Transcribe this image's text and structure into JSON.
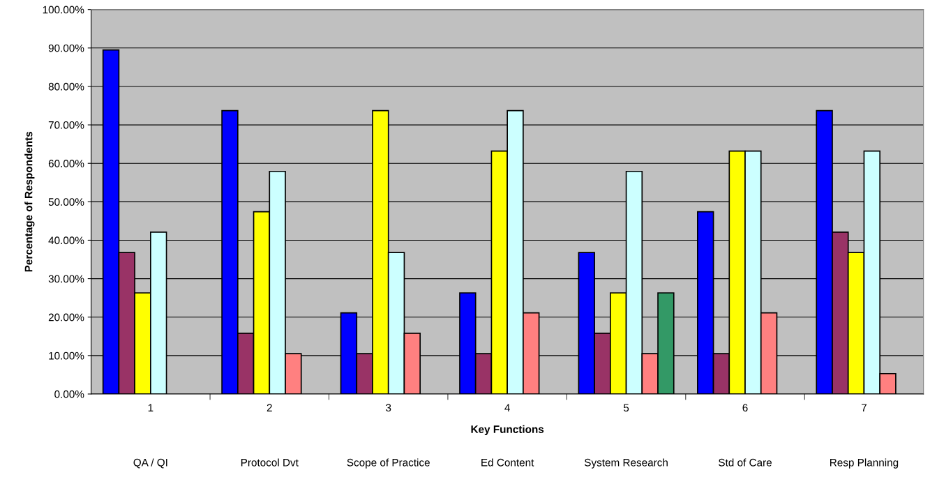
{
  "chart_data": {
    "type": "bar",
    "xlabel": "Key Functions",
    "ylabel": "Percentage of Respondents",
    "categories": [
      "1",
      "2",
      "3",
      "4",
      "5",
      "6",
      "7"
    ],
    "series": [
      {
        "color": "#0000ff",
        "values": [
          89.5,
          73.7,
          21.1,
          26.3,
          36.8,
          47.4,
          73.7
        ]
      },
      {
        "color": "#993366",
        "values": [
          36.8,
          15.8,
          10.5,
          10.5,
          15.8,
          10.5,
          42.1
        ]
      },
      {
        "color": "#ffff00",
        "values": [
          26.3,
          47.4,
          73.7,
          63.2,
          26.3,
          63.2,
          36.8
        ]
      },
      {
        "color": "#ccffff",
        "values": [
          42.1,
          57.9,
          36.8,
          73.7,
          57.9,
          63.2,
          63.2
        ]
      },
      {
        "color": "#ff8080",
        "values": [
          null,
          10.5,
          15.8,
          21.1,
          10.5,
          21.1,
          5.3
        ]
      },
      {
        "color": "#339966",
        "values": [
          null,
          null,
          null,
          null,
          26.3,
          null,
          null
        ]
      }
    ],
    "ylim": [
      0,
      100
    ],
    "yticks": [
      {
        "value": 0,
        "label": "0.00%"
      },
      {
        "value": 10,
        "label": "10.00%"
      },
      {
        "value": 20,
        "label": "20.00%"
      },
      {
        "value": 30,
        "label": "30.00%"
      },
      {
        "value": 40,
        "label": "40.00%"
      },
      {
        "value": 50,
        "label": "50.00%"
      },
      {
        "value": 60,
        "label": "60.00%"
      },
      {
        "value": 70,
        "label": "70.00%"
      },
      {
        "value": 80,
        "label": "80.00%"
      },
      {
        "value": 90,
        "label": "90.00%"
      },
      {
        "value": 100,
        "label": "100.00%"
      }
    ],
    "grid": "y",
    "annotations": [
      "QA / QI",
      "Protocol Dvt",
      "Scope of Practice",
      "Ed Content",
      "System Research",
      "Std of Care",
      "Resp Planning"
    ]
  }
}
